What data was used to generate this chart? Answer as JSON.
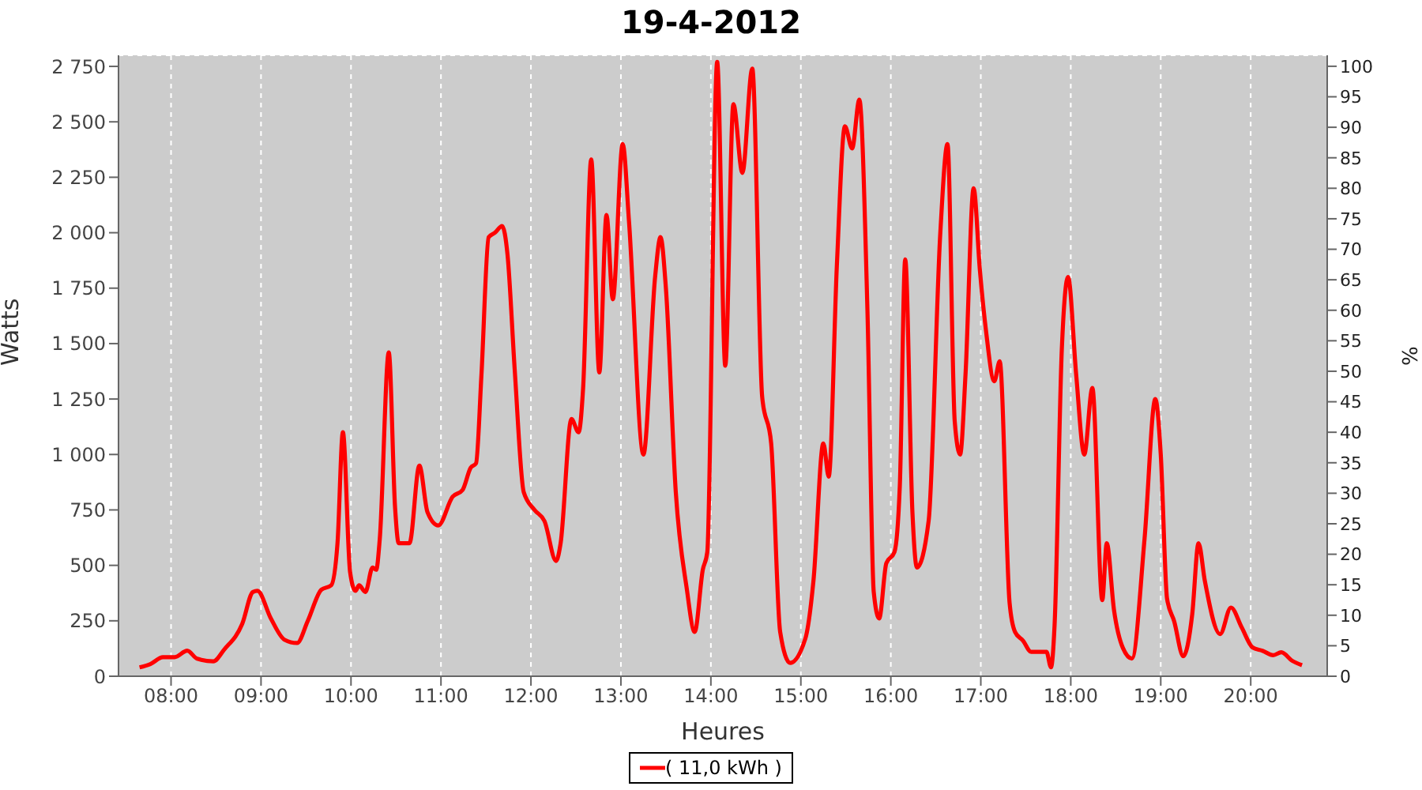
{
  "chart_data": {
    "type": "line",
    "title": "19-4-2012",
    "xlabel": "Heures",
    "ylabel": "Watts",
    "y2label": "%",
    "x": [
      7.65,
      7.77,
      7.91,
      8.04,
      8.18,
      8.29,
      8.47,
      8.59,
      8.79,
      8.91,
      8.96,
      9.11,
      9.26,
      9.4,
      9.52,
      9.67,
      9.78,
      9.85,
      9.91,
      9.99,
      10.05,
      10.09,
      10.16,
      10.24,
      10.28,
      10.32,
      10.42,
      10.49,
      10.53,
      10.65,
      10.76,
      10.85,
      10.97,
      11.13,
      11.24,
      11.33,
      11.39,
      11.45,
      11.53,
      11.6,
      11.68,
      11.74,
      11.82,
      11.92,
      12.04,
      12.15,
      12.28,
      12.33,
      12.45,
      12.53,
      12.58,
      12.67,
      12.76,
      12.84,
      12.91,
      13.02,
      13.09,
      13.25,
      13.38,
      13.44,
      13.5,
      13.61,
      13.73,
      13.82,
      13.91,
      13.96,
      14.07,
      14.16,
      14.25,
      14.35,
      14.46,
      14.57,
      14.67,
      14.77,
      14.88,
      15.05,
      15.14,
      15.25,
      15.31,
      15.4,
      15.49,
      15.57,
      15.65,
      15.74,
      15.81,
      15.87,
      15.95,
      16.04,
      16.1,
      16.16,
      16.24,
      16.29,
      16.42,
      16.55,
      16.63,
      16.71,
      16.77,
      16.83,
      16.92,
      16.99,
      17.06,
      17.15,
      17.21,
      17.32,
      17.38,
      17.47,
      17.56,
      17.73,
      17.78,
      17.82,
      17.9,
      17.97,
      18.06,
      18.15,
      18.24,
      18.35,
      18.4,
      18.48,
      18.58,
      18.68,
      18.82,
      18.94,
      19,
      19.07,
      19.15,
      19.25,
      19.35,
      19.42,
      19.49,
      19.66,
      19.78,
      19.9,
      20.02,
      20.13,
      20.25,
      20.34,
      20.46,
      20.57
    ],
    "series": [
      {
        "name": "( 11,0 kWh )",
        "color": "#ff0000",
        "values": [
          40,
          55,
          86,
          86,
          115,
          79,
          67,
          120,
          235,
          380,
          385,
          260,
          165,
          150,
          250,
          390,
          410,
          600,
          1100,
          470,
          385,
          410,
          380,
          490,
          480,
          620,
          1460,
          760,
          600,
          600,
          950,
          740,
          680,
          810,
          840,
          940,
          960,
          1360,
          1980,
          2000,
          2030,
          1900,
          1380,
          830,
          750,
          700,
          520,
          600,
          1160,
          1100,
          1300,
          2330,
          1370,
          2080,
          1700,
          2400,
          2050,
          1000,
          1800,
          1980,
          1750,
          830,
          400,
          200,
          480,
          560,
          2770,
          1400,
          2580,
          2270,
          2740,
          1260,
          1050,
          200,
          60,
          170,
          430,
          1050,
          900,
          1850,
          2480,
          2380,
          2600,
          1650,
          380,
          260,
          510,
          560,
          860,
          1880,
          740,
          490,
          700,
          2000,
          2400,
          1150,
          1000,
          1360,
          2200,
          1830,
          1550,
          1330,
          1420,
          330,
          200,
          160,
          110,
          110,
          40,
          230,
          1470,
          1800,
          1360,
          1000,
          1300,
          343,
          600,
          300,
          127,
          80,
          620,
          1250,
          1000,
          350,
          247,
          90,
          280,
          600,
          430,
          190,
          310,
          220,
          130,
          115,
          95,
          108,
          70,
          50
        ]
      }
    ],
    "xlim": [
      7.416,
      20.85
    ],
    "xticks": [
      {
        "value": 8,
        "label": "08:00"
      },
      {
        "value": 9,
        "label": "09:00"
      },
      {
        "value": 10,
        "label": "10:00"
      },
      {
        "value": 11,
        "label": "11:00"
      },
      {
        "value": 12,
        "label": "12:00"
      },
      {
        "value": 13,
        "label": "13:00"
      },
      {
        "value": 14,
        "label": "14:00"
      },
      {
        "value": 15,
        "label": "15:00"
      },
      {
        "value": 16,
        "label": "16:00"
      },
      {
        "value": 17,
        "label": "17:00"
      },
      {
        "value": 18,
        "label": "18:00"
      },
      {
        "value": 19,
        "label": "19:00"
      },
      {
        "value": 20,
        "label": "20:00"
      }
    ],
    "ylim": [
      0,
      2800
    ],
    "yticks": [
      0,
      250,
      500,
      750,
      {
        "value": 1000,
        "label": "1 000"
      },
      {
        "value": 1250,
        "label": "1 250"
      },
      {
        "value": 1500,
        "label": "1 500"
      },
      {
        "value": 1750,
        "label": "1 750"
      },
      {
        "value": 2000,
        "label": "2 000"
      },
      {
        "value": 2250,
        "label": "2 250"
      },
      {
        "value": 2500,
        "label": "2 500"
      },
      {
        "value": 2750,
        "label": "2 750"
      }
    ],
    "y2lim": [
      0,
      101.8
    ],
    "y2ticks": [
      0,
      5,
      10,
      15,
      20,
      25,
      30,
      35,
      40,
      45,
      50,
      55,
      60,
      65,
      70,
      75,
      80,
      85,
      90,
      95,
      100
    ],
    "grid": true,
    "legend": "bottom",
    "line_style": "solid"
  }
}
